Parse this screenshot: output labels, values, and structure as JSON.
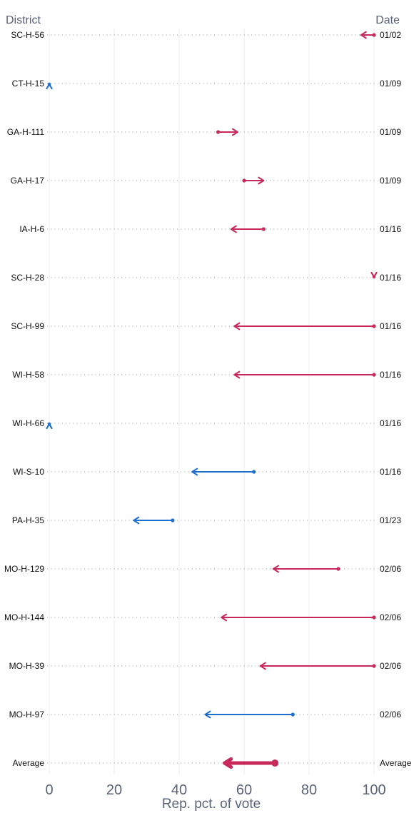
{
  "chart_data": {
    "type": "dumbbell-arrow",
    "left_header": "District",
    "right_header": "Date",
    "xlabel": "Rep. pct. of vote",
    "xlim": [
      0,
      100
    ],
    "xticks": [
      0,
      20,
      40,
      60,
      80,
      100
    ],
    "grid": "vertical minor gridlines, dotted row guides",
    "colors": {
      "republican": "#c8295a",
      "democrat": "#1f6fcf"
    },
    "rows": [
      {
        "district": "SC-H-56",
        "date": "01/02",
        "from": 100,
        "to": 96,
        "party": "republican"
      },
      {
        "district": "CT-H-15",
        "date": "01/09",
        "from": 0,
        "to": 0,
        "party": "democrat"
      },
      {
        "district": "GA-H-111",
        "date": "01/09",
        "from": 52,
        "to": 58,
        "party": "republican"
      },
      {
        "district": "GA-H-17",
        "date": "01/09",
        "from": 60,
        "to": 66,
        "party": "republican"
      },
      {
        "district": "IA-H-6",
        "date": "01/16",
        "from": 66,
        "to": 56,
        "party": "republican"
      },
      {
        "district": "SC-H-28",
        "date": "01/16",
        "from": 100,
        "to": 100,
        "party": "republican"
      },
      {
        "district": "SC-H-99",
        "date": "01/16",
        "from": 100,
        "to": 57,
        "party": "republican"
      },
      {
        "district": "WI-H-58",
        "date": "01/16",
        "from": 100,
        "to": 57,
        "party": "republican"
      },
      {
        "district": "WI-H-66",
        "date": "01/16",
        "from": 0,
        "to": 0,
        "party": "democrat"
      },
      {
        "district": "WI-S-10",
        "date": "01/16",
        "from": 63,
        "to": 44,
        "party": "democrat"
      },
      {
        "district": "PA-H-35",
        "date": "01/23",
        "from": 38,
        "to": 26,
        "party": "democrat"
      },
      {
        "district": "MO-H-129",
        "date": "02/06",
        "from": 89,
        "to": 69,
        "party": "republican"
      },
      {
        "district": "MO-H-144",
        "date": "02/06",
        "from": 100,
        "to": 53,
        "party": "republican"
      },
      {
        "district": "MO-H-39",
        "date": "02/06",
        "from": 100,
        "to": 65,
        "party": "republican"
      },
      {
        "district": "MO-H-97",
        "date": "02/06",
        "from": 75,
        "to": 48,
        "party": "democrat"
      },
      {
        "district": "Average",
        "date": "Average",
        "from": 69.5,
        "to": 54,
        "party": "republican",
        "is_average": true
      }
    ]
  }
}
